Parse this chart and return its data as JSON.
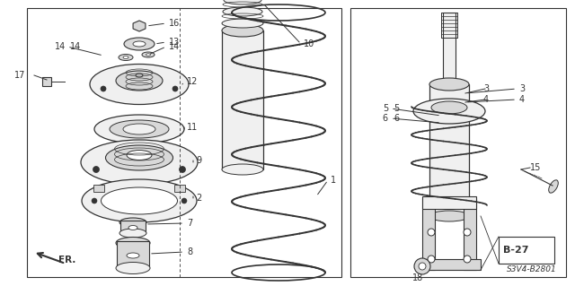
{
  "bg_color": "#ffffff",
  "line_color": "#333333",
  "fill_light": "#f0f0f0",
  "fill_mid": "#d8d8d8",
  "fill_dark": "#b8b8b8",
  "page_ref": "B-27",
  "diagram_code": "S3V4-B2801",
  "fr_label": "FR.",
  "label_fs": 7,
  "fig_w": 6.4,
  "fig_h": 3.19,
  "dpi": 100
}
